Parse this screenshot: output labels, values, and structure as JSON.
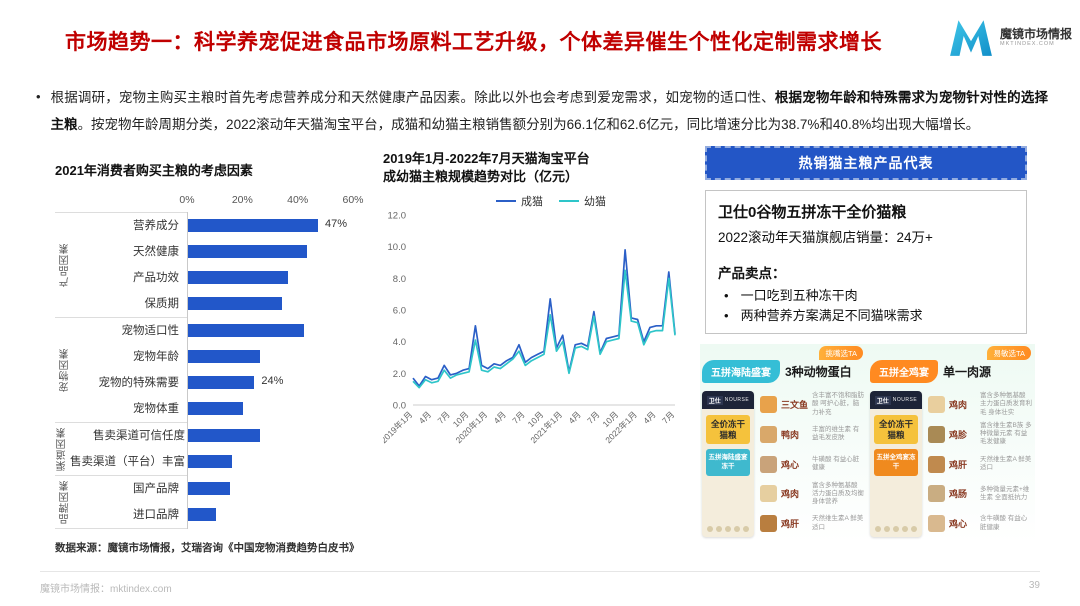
{
  "header": {
    "title": "市场趋势一：科学养宠促进食品市场原料工艺升级，个体差异催生个性化定制需求增长",
    "logo": {
      "name": "魔镜市场情报",
      "domain": "MKTINDEX.COM"
    }
  },
  "intro": {
    "bullet": "•",
    "pre": "根据调研，宠物主购买主粮时首先考虑营养成分和天然健康产品因素。除此以外也会考虑到爱宠需求，如宠物的适口性、",
    "bold": "根据宠物年龄和特殊需求为宠物针对性的选择主粮",
    "post": "。按宠物年龄周期分类，2022滚动年天猫淘宝平台，成猫和幼猫主粮销售额分别为66.1亿和62.6亿元，同比增速分比为38.7%和40.8%均出现大幅增长。"
  },
  "chart_data": [
    {
      "type": "bar",
      "title": "2021年消费者购买主粮的考虑因素",
      "orientation": "horizontal",
      "xlim": [
        0,
        60
      ],
      "x_ticks": [
        "0%",
        "20%",
        "40%",
        "60%"
      ],
      "bar_color": "#2257C9",
      "grid": false,
      "groups": [
        {
          "name": "产品因素",
          "items": [
            {
              "label": "营养成分",
              "value": 47,
              "data_label": "47%"
            },
            {
              "label": "天然健康",
              "value": 43
            },
            {
              "label": "产品功效",
              "value": 36
            },
            {
              "label": "保质期",
              "value": 34
            }
          ]
        },
        {
          "name": "宠物因素",
          "items": [
            {
              "label": "宠物适口性",
              "value": 42
            },
            {
              "label": "宠物年龄",
              "value": 26
            },
            {
              "label": "宠物的特殊需要",
              "value": 24,
              "data_label": "24%"
            },
            {
              "label": "宠物体重",
              "value": 20
            }
          ]
        },
        {
          "name": "渠道因素",
          "items": [
            {
              "label": "售卖渠道可信任度",
              "value": 26
            },
            {
              "label": "售卖渠道（平台）丰富",
              "value": 16
            }
          ]
        },
        {
          "name": "品牌因素",
          "items": [
            {
              "label": "国产品牌",
              "value": 15
            },
            {
              "label": "进口品牌",
              "value": 10
            }
          ]
        }
      ]
    },
    {
      "type": "line",
      "title_line1": "2019年1月-2022年7月天猫淘宝平台",
      "title_line2": "成幼猫主粮规模趋势对比（亿元）",
      "ylim": [
        0,
        12
      ],
      "y_ticks": [
        0,
        2,
        4,
        6,
        8,
        10,
        12
      ],
      "grid": false,
      "legend_position": "top",
      "x_tick_every": 3,
      "x_tick_labels": [
        "2019年1月",
        "4月",
        "7月",
        "10月",
        "2020年1月",
        "4月",
        "7月",
        "10月",
        "2021年1月",
        "4月",
        "7月",
        "10月",
        "2022年1月",
        "4月",
        "7月"
      ],
      "series": [
        {
          "name": "成猫",
          "color": "#2B5FC7",
          "values": [
            1.7,
            1.2,
            1.8,
            1.6,
            1.7,
            2.5,
            1.9,
            2.0,
            2.2,
            2.3,
            5.0,
            2.5,
            2.3,
            2.6,
            2.5,
            2.8,
            3.0,
            3.8,
            2.7,
            3.0,
            3.2,
            3.4,
            6.7,
            3.6,
            4.4,
            2.1,
            3.8,
            3.9,
            3.7,
            5.9,
            3.3,
            4.2,
            4.3,
            4.4,
            9.8,
            5.5,
            5.4,
            4.0,
            4.9,
            5.0,
            5.0,
            8.4,
            4.5
          ]
        },
        {
          "name": "幼猫",
          "color": "#2EC5C9",
          "values": [
            1.5,
            1.1,
            1.6,
            1.4,
            1.5,
            2.2,
            1.7,
            1.9,
            2.0,
            2.1,
            4.1,
            2.2,
            2.1,
            2.4,
            2.3,
            2.6,
            2.9,
            3.4,
            2.5,
            2.8,
            3.0,
            3.2,
            5.7,
            3.4,
            4.0,
            2.0,
            3.6,
            3.7,
            3.5,
            5.6,
            3.2,
            4.0,
            4.1,
            4.2,
            8.5,
            5.3,
            5.2,
            3.8,
            4.6,
            4.7,
            4.7,
            8.0,
            4.4
          ]
        }
      ]
    }
  ],
  "right_panel": {
    "header": "热销猫主粮产品代表",
    "product_name": "卫仕0谷物五拼冻干全价猫粮",
    "sales": "2022滚动年天猫旗舰店销量：24万+",
    "selling_points_title": "产品卖点：",
    "selling_points": [
      "一口吃到五种冻干肉",
      "两种营养方案满足不同猫咪需求"
    ],
    "cards": [
      {
        "ribbon": "五拼海陆盛宴",
        "ribbon_color": "#35BED6",
        "headline": "3种动物蛋白",
        "tag": "挑嘴选TA",
        "bag": {
          "brand": "卫仕",
          "brand_en": "NOURSE",
          "line1": "全价冻干猫粮",
          "line2": "五拼海陆盛宴冻干",
          "accent": "#3FB9CE"
        },
        "ingredients": [
          {
            "name": "三文鱼",
            "desc": "含丰富不饱和脂肪酸 呵护心脏，脑力补充"
          },
          {
            "name": "鸭肉",
            "desc": "丰富的维生素 有益毛发皮肤"
          },
          {
            "name": "鸡心",
            "desc": "牛磺酸 有益心脏健康"
          },
          {
            "name": "鸡肉",
            "desc": "富含多种氨基酸 活力蛋白质及均衡 身体营养"
          },
          {
            "name": "鸡肝",
            "desc": "天然维生素A 鲜美适口"
          }
        ]
      },
      {
        "ribbon": "五拼全鸡宴",
        "ribbon_color": "#FF8A21",
        "headline": "单一肉源",
        "tag": "易敏选TA",
        "bag": {
          "brand": "卫仕",
          "brand_en": "NOURSE",
          "line1": "全价冻干猫粮",
          "line2": "五拼全鸡宴冻干",
          "accent": "#F08A1E"
        },
        "ingredients": [
          {
            "name": "鸡肉",
            "desc": "富含多种氨基酸 主力蛋白质发育利毛 身体壮实"
          },
          {
            "name": "鸡胗",
            "desc": "富含维生素B族 多种微量元素 有益毛发健康"
          },
          {
            "name": "鸡肝",
            "desc": "天然维生素A 鲜美适口"
          },
          {
            "name": "鸡肠",
            "desc": "多种微量元素+维生素 全面抵抗力"
          },
          {
            "name": "鸡心",
            "desc": "含牛磺酸 有益心脏健康"
          }
        ]
      }
    ]
  },
  "source": "数据来源：魔镜市场情报，艾瑞咨询《中国宠物消费趋势白皮书》",
  "footer": {
    "left": "魔镜市场情报：mktindex.com",
    "page": "39"
  }
}
